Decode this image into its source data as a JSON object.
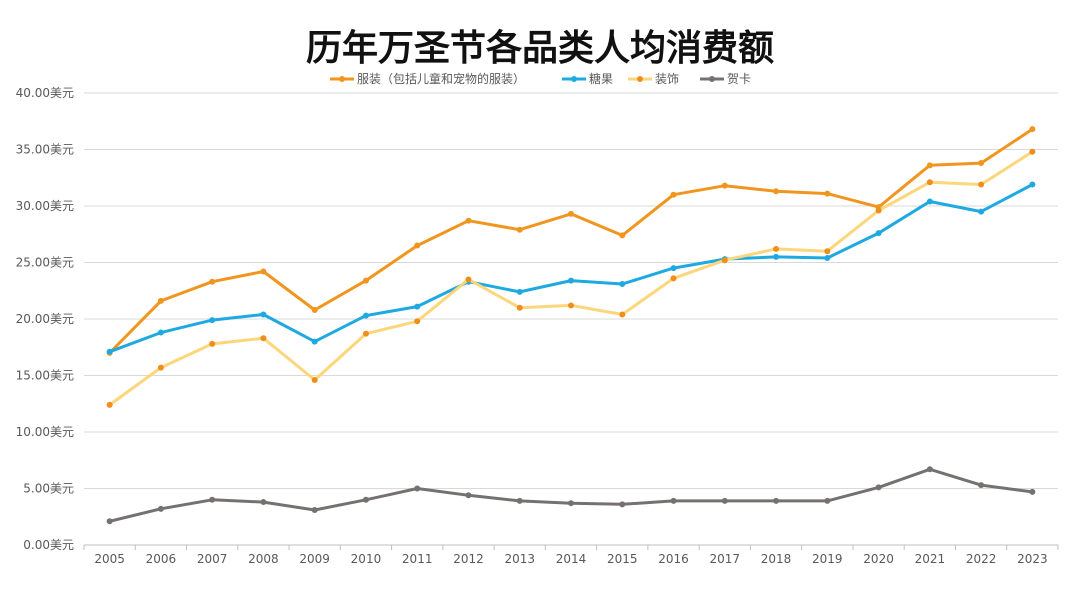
{
  "chart_data": {
    "type": "line",
    "title": "历年万圣节各品类人均消费额",
    "xlabel": "",
    "ylabel": "",
    "x": [
      "2005",
      "2006",
      "2007",
      "2008",
      "2009",
      "2010",
      "2011",
      "2012",
      "2013",
      "2014",
      "2015",
      "2016",
      "2017",
      "2018",
      "2019",
      "2020",
      "2021",
      "2022",
      "2023"
    ],
    "ylim": [
      0,
      40
    ],
    "yticks": [
      "0.00美元",
      "5.00美元",
      "10.00美元",
      "15.00美元",
      "20.00美元",
      "25.00美元",
      "30.00美元",
      "35.00美元",
      "40.00美元"
    ],
    "grid": true,
    "legend": "top",
    "series": [
      {
        "name": "服装（包括儿童和宠物的服装）",
        "color": "#f0951e",
        "marker_color": "#f0951e",
        "values": [
          17.0,
          21.6,
          23.3,
          24.2,
          20.8,
          23.4,
          26.5,
          28.7,
          27.9,
          29.3,
          27.4,
          31.0,
          31.8,
          31.3,
          31.1,
          29.9,
          33.6,
          33.8,
          36.8
        ]
      },
      {
        "name": "糖果",
        "color": "#1fa9e1",
        "marker_color": "#1fa9e1",
        "values": [
          17.1,
          18.8,
          19.9,
          20.4,
          18.0,
          20.3,
          21.1,
          23.3,
          22.4,
          23.4,
          23.1,
          24.5,
          25.3,
          25.5,
          25.4,
          27.6,
          30.4,
          29.5,
          31.9
        ]
      },
      {
        "name": "装饰",
        "color": "#fbd67a",
        "marker_color": "#ef8e1a",
        "values": [
          12.4,
          15.7,
          17.8,
          18.3,
          14.6,
          18.7,
          19.8,
          23.5,
          21.0,
          21.2,
          20.4,
          23.6,
          25.2,
          26.2,
          26.0,
          29.6,
          32.1,
          31.9,
          34.8
        ]
      },
      {
        "name": "贺卡",
        "color": "#767171",
        "marker_color": "#767171",
        "values": [
          2.1,
          3.2,
          4.0,
          3.8,
          3.1,
          4.0,
          5.0,
          4.4,
          3.9,
          3.7,
          3.6,
          3.9,
          3.9,
          3.9,
          3.9,
          5.1,
          6.7,
          5.3,
          4.7
        ]
      }
    ]
  }
}
